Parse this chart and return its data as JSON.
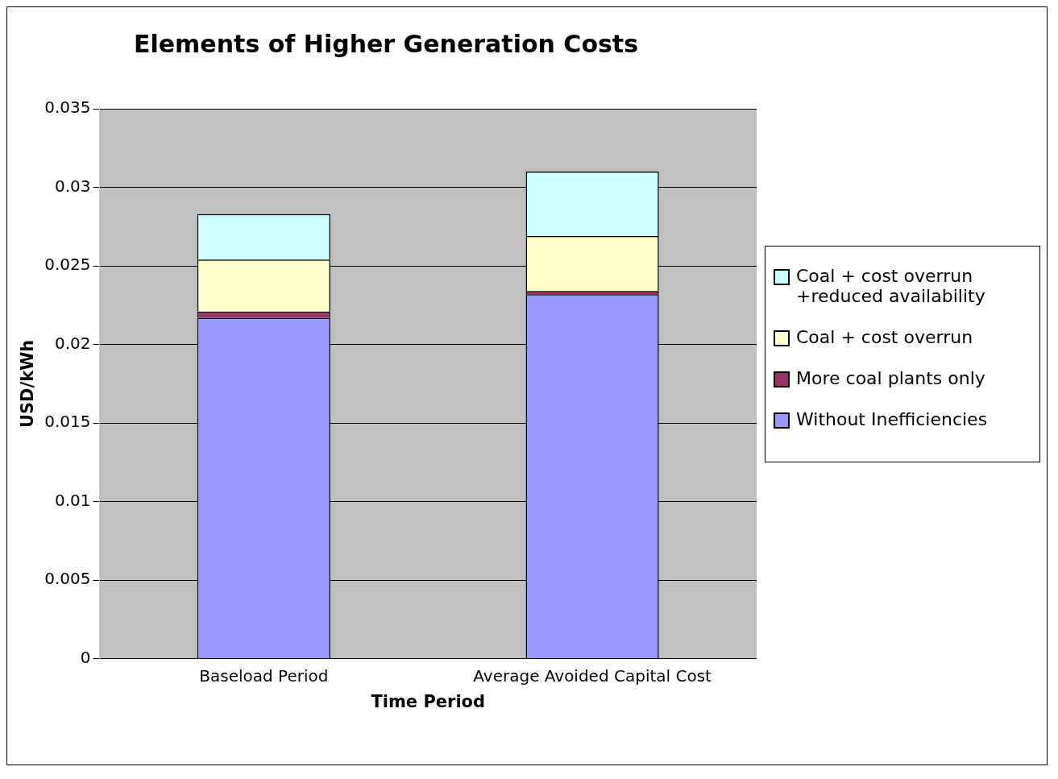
{
  "chart_data": {
    "type": "bar",
    "title": "Elements of Higher Generation Costs",
    "xlabel": "Time Period",
    "ylabel": "USD/kWh",
    "categories": [
      "Baseload Period",
      "Average Avoided Capital Cost"
    ],
    "stacked": true,
    "series": [
      {
        "name": "Without Inefficiencies",
        "color": "#9999ff",
        "values": [
          0.0217,
          0.0232
        ]
      },
      {
        "name": "More coal plants only",
        "color": "#993366",
        "values": [
          0.0004,
          0.0002
        ]
      },
      {
        "name": "Coal + cost overrun",
        "color": "#ffffcc",
        "values": [
          0.0033,
          0.0035
        ]
      },
      {
        "name": "Coal + cost overrun +reduced availability",
        "color": "#ccffff",
        "values": [
          0.0029,
          0.0041
        ]
      }
    ],
    "ylim": [
      0,
      0.035
    ],
    "yticks": [
      0,
      0.005,
      0.01,
      0.015,
      0.02,
      0.025,
      0.03,
      0.035
    ],
    "grid": "y",
    "legend": "right"
  }
}
